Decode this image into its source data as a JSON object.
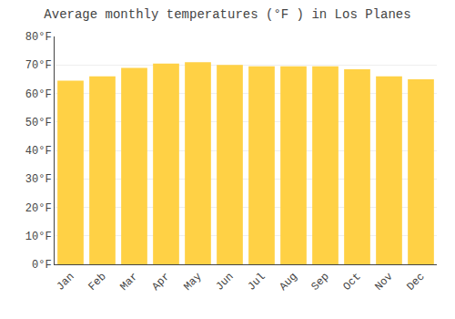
{
  "chart_data": {
    "type": "bar",
    "title": "Average monthly temperatures (°F ) in Los Planes",
    "categories": [
      "Jan",
      "Feb",
      "Mar",
      "Apr",
      "May",
      "Jun",
      "Jul",
      "Aug",
      "Sep",
      "Oct",
      "Nov",
      "Dec"
    ],
    "values": [
      64.5,
      66.0,
      69.0,
      70.5,
      71.0,
      70.0,
      69.5,
      69.5,
      69.5,
      68.5,
      66.0,
      65.0
    ],
    "color": "#FFD145",
    "ylim": [
      0,
      80
    ],
    "yticks": [
      {
        "value": 0,
        "label": "0°F"
      },
      {
        "value": 10,
        "label": "10°F"
      },
      {
        "value": 20,
        "label": "20°F"
      },
      {
        "value": 30,
        "label": "30°F"
      },
      {
        "value": 40,
        "label": "40°F"
      },
      {
        "value": 50,
        "label": "50°F"
      },
      {
        "value": 60,
        "label": "60°F"
      },
      {
        "value": 70,
        "label": "70°F"
      },
      {
        "value": 80,
        "label": "80°F"
      }
    ],
    "grid": true
  }
}
